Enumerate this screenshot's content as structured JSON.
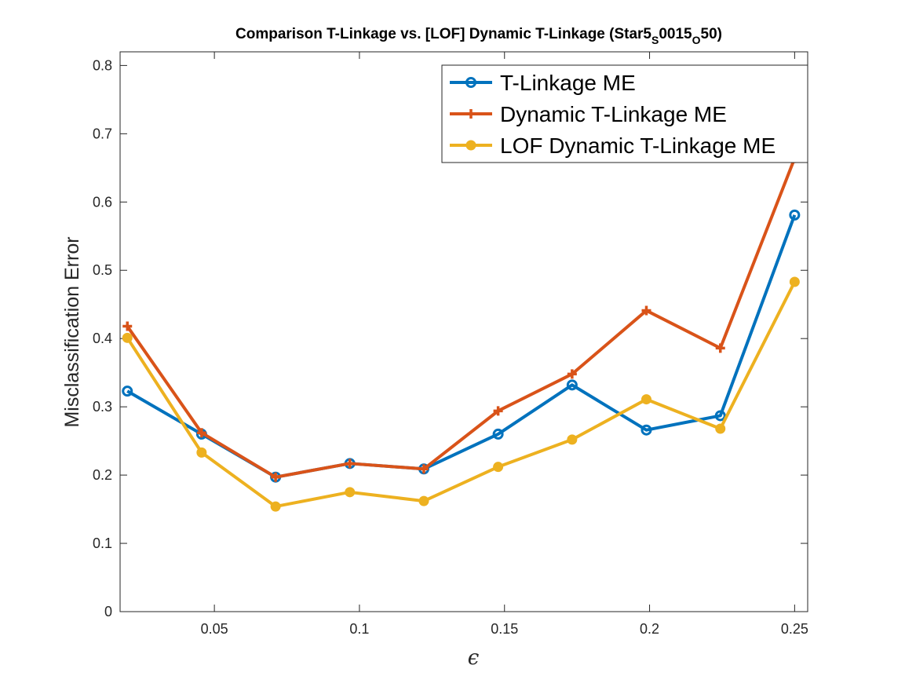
{
  "chart_data": {
    "type": "line",
    "title_parts": [
      {
        "text": "Comparison T-Linkage vs. [LOF] Dynamic T-Linkage (Star5",
        "sub": false
      },
      {
        "text": "S",
        "sub": true
      },
      {
        "text": "0015",
        "sub": false
      },
      {
        "text": "O",
        "sub": true
      },
      {
        "text": "50)",
        "sub": false
      }
    ],
    "xlabel": "ϵ",
    "ylabel": "Misclassification Error",
    "xlim": [
      0.0175,
      0.2545
    ],
    "ylim": [
      0,
      0.82
    ],
    "xticks": [
      0.05,
      0.1,
      0.15,
      0.2,
      0.25
    ],
    "xtick_labels": [
      "0.05",
      "0.1",
      "0.15",
      "0.2",
      "0.25"
    ],
    "yticks": [
      0,
      0.1,
      0.2,
      0.3,
      0.4,
      0.5,
      0.6,
      0.7,
      0.8
    ],
    "ytick_labels": [
      "0",
      "0.1",
      "0.2",
      "0.3",
      "0.4",
      "0.5",
      "0.6",
      "0.7",
      "0.8"
    ],
    "x": [
      0.02,
      0.0456,
      0.0711,
      0.0967,
      0.1222,
      0.1478,
      0.1733,
      0.1989,
      0.2244,
      0.25
    ],
    "legend_position": "top-right",
    "series": [
      {
        "name": "T-Linkage ME",
        "color": "#0072BD",
        "marker": "circle",
        "values": [
          0.323,
          0.26,
          0.197,
          0.217,
          0.209,
          0.26,
          0.332,
          0.266,
          0.287,
          0.581
        ]
      },
      {
        "name": "Dynamic T-Linkage ME",
        "color": "#D95319",
        "marker": "plus",
        "values": [
          0.418,
          0.262,
          0.197,
          0.217,
          0.209,
          0.294,
          0.348,
          0.441,
          0.386,
          0.664
        ]
      },
      {
        "name": "LOF Dynamic T-Linkage ME",
        "color": "#EDB120",
        "marker": "dot",
        "values": [
          0.401,
          0.233,
          0.154,
          0.175,
          0.162,
          0.212,
          0.252,
          0.311,
          0.268,
          0.483
        ]
      }
    ]
  }
}
